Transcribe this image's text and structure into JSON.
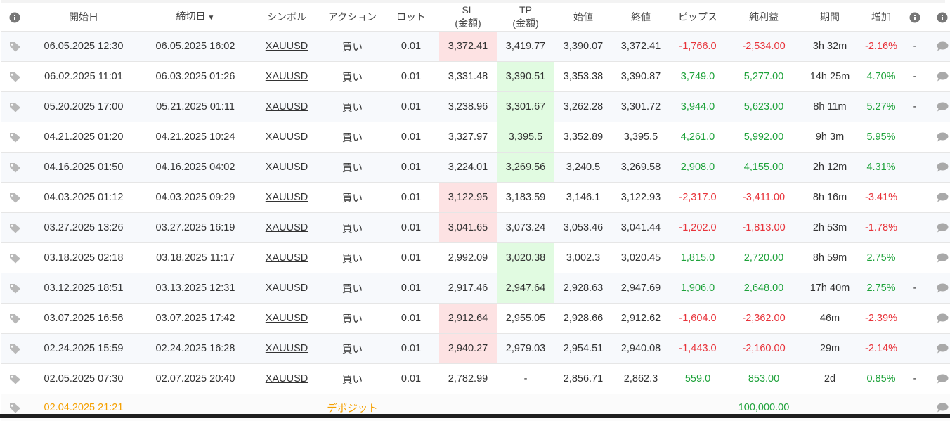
{
  "header": {
    "start_date": "開始日",
    "close_date": "締切日",
    "close_date_sort": "▼",
    "symbol": "シンボル",
    "action": "アクション",
    "lot": "ロット",
    "sl_line1": "SL",
    "sl_line2": "(金額)",
    "tp_line1": "TP",
    "tp_line2": "(金額)",
    "open_price": "始値",
    "close_price": "終値",
    "pips": "ピップス",
    "net_profit": "純利益",
    "duration": "期間",
    "gain": "増加"
  },
  "colors": {
    "red": "#e8333a",
    "green": "#1ea23a",
    "orange": "#f5a000",
    "sl_hit_bg": "#fde2e3",
    "tp_hit_bg": "#e1fbe1"
  },
  "rows": [
    {
      "open": "06.05.2025 12:30",
      "close": "06.05.2025 16:02",
      "symbol": "XAUUSD",
      "action": "買い",
      "lot": "0.01",
      "sl": "3,372.41",
      "tp": "3,419.77",
      "open_price": "3,390.07",
      "close_price": "3,372.41",
      "pips": "-1,766.0",
      "profit": "-2,534.00",
      "duration": "3h 32m",
      "gain": "-2.16%",
      "extra": "-",
      "status": "loss",
      "hit": "sl"
    },
    {
      "open": "06.02.2025 11:01",
      "close": "06.03.2025 01:26",
      "symbol": "XAUUSD",
      "action": "買い",
      "lot": "0.01",
      "sl": "3,331.48",
      "tp": "3,390.51",
      "open_price": "3,353.38",
      "close_price": "3,390.87",
      "pips": "3,749.0",
      "profit": "5,277.00",
      "duration": "14h 25m",
      "gain": "4.70%",
      "extra": "-",
      "status": "win",
      "hit": "tp"
    },
    {
      "open": "05.20.2025 17:00",
      "close": "05.21.2025 01:11",
      "symbol": "XAUUSD",
      "action": "買い",
      "lot": "0.01",
      "sl": "3,238.96",
      "tp": "3,301.67",
      "open_price": "3,262.28",
      "close_price": "3,301.72",
      "pips": "3,944.0",
      "profit": "5,623.00",
      "duration": "8h 11m",
      "gain": "5.27%",
      "extra": "-",
      "status": "win",
      "hit": "tp"
    },
    {
      "open": "04.21.2025 01:20",
      "close": "04.21.2025 10:24",
      "symbol": "XAUUSD",
      "action": "買い",
      "lot": "0.01",
      "sl": "3,327.97",
      "tp": "3,395.5",
      "open_price": "3,352.89",
      "close_price": "3,395.5",
      "pips": "4,261.0",
      "profit": "5,992.00",
      "duration": "9h 3m",
      "gain": "5.95%",
      "extra": "",
      "status": "win",
      "hit": "tp"
    },
    {
      "open": "04.16.2025 01:50",
      "close": "04.16.2025 04:02",
      "symbol": "XAUUSD",
      "action": "買い",
      "lot": "0.01",
      "sl": "3,224.01",
      "tp": "3,269.56",
      "open_price": "3,240.5",
      "close_price": "3,269.58",
      "pips": "2,908.0",
      "profit": "4,155.00",
      "duration": "2h 12m",
      "gain": "4.31%",
      "extra": "",
      "status": "win",
      "hit": "tp"
    },
    {
      "open": "04.03.2025 01:12",
      "close": "04.03.2025 09:29",
      "symbol": "XAUUSD",
      "action": "買い",
      "lot": "0.01",
      "sl": "3,122.95",
      "tp": "3,183.59",
      "open_price": "3,146.1",
      "close_price": "3,122.93",
      "pips": "-2,317.0",
      "profit": "-3,411.00",
      "duration": "8h 16m",
      "gain": "-3.41%",
      "extra": "",
      "status": "loss",
      "hit": "sl"
    },
    {
      "open": "03.27.2025 13:26",
      "close": "03.27.2025 16:19",
      "symbol": "XAUUSD",
      "action": "買い",
      "lot": "0.01",
      "sl": "3,041.65",
      "tp": "3,073.24",
      "open_price": "3,053.46",
      "close_price": "3,041.44",
      "pips": "-1,202.0",
      "profit": "-1,813.00",
      "duration": "2h 53m",
      "gain": "-1.78%",
      "extra": "",
      "status": "loss",
      "hit": "sl"
    },
    {
      "open": "03.18.2025 02:18",
      "close": "03.18.2025 11:17",
      "symbol": "XAUUSD",
      "action": "買い",
      "lot": "0.01",
      "sl": "2,992.09",
      "tp": "3,020.38",
      "open_price": "3,002.3",
      "close_price": "3,020.45",
      "pips": "1,815.0",
      "profit": "2,720.00",
      "duration": "8h 59m",
      "gain": "2.75%",
      "extra": "",
      "status": "win",
      "hit": "tp"
    },
    {
      "open": "03.12.2025 18:51",
      "close": "03.13.2025 12:31",
      "symbol": "XAUUSD",
      "action": "買い",
      "lot": "0.01",
      "sl": "2,917.46",
      "tp": "2,947.64",
      "open_price": "2,928.63",
      "close_price": "2,947.69",
      "pips": "1,906.0",
      "profit": "2,648.00",
      "duration": "17h 40m",
      "gain": "2.75%",
      "extra": "-",
      "status": "win",
      "hit": "tp"
    },
    {
      "open": "03.07.2025 16:56",
      "close": "03.07.2025 17:42",
      "symbol": "XAUUSD",
      "action": "買い",
      "lot": "0.01",
      "sl": "2,912.64",
      "tp": "2,955.05",
      "open_price": "2,928.66",
      "close_price": "2,912.62",
      "pips": "-1,604.0",
      "profit": "-2,362.00",
      "duration": "46m",
      "gain": "-2.39%",
      "extra": "",
      "status": "loss",
      "hit": "sl"
    },
    {
      "open": "02.24.2025 15:59",
      "close": "02.24.2025 16:28",
      "symbol": "XAUUSD",
      "action": "買い",
      "lot": "0.01",
      "sl": "2,940.27",
      "tp": "2,979.03",
      "open_price": "2,954.51",
      "close_price": "2,940.08",
      "pips": "-1,443.0",
      "profit": "-2,160.00",
      "duration": "29m",
      "gain": "-2.14%",
      "extra": "",
      "status": "loss",
      "hit": "sl"
    },
    {
      "open": "02.05.2025 07:30",
      "close": "02.07.2025 20:40",
      "symbol": "XAUUSD",
      "action": "買い",
      "lot": "0.01",
      "sl": "2,782.99",
      "tp": "-",
      "open_price": "2,856.71",
      "close_price": "2,862.3",
      "pips": "559.0",
      "profit": "853.00",
      "duration": "2d",
      "gain": "0.85%",
      "extra": "-",
      "status": "win",
      "hit": ""
    }
  ],
  "deposit": {
    "open": "02.04.2025 21:21",
    "action": "デポジット",
    "profit": "100,000.00"
  },
  "icons": {
    "tag": "tag-icon",
    "info": "info-icon",
    "comment": "comment-icon"
  }
}
